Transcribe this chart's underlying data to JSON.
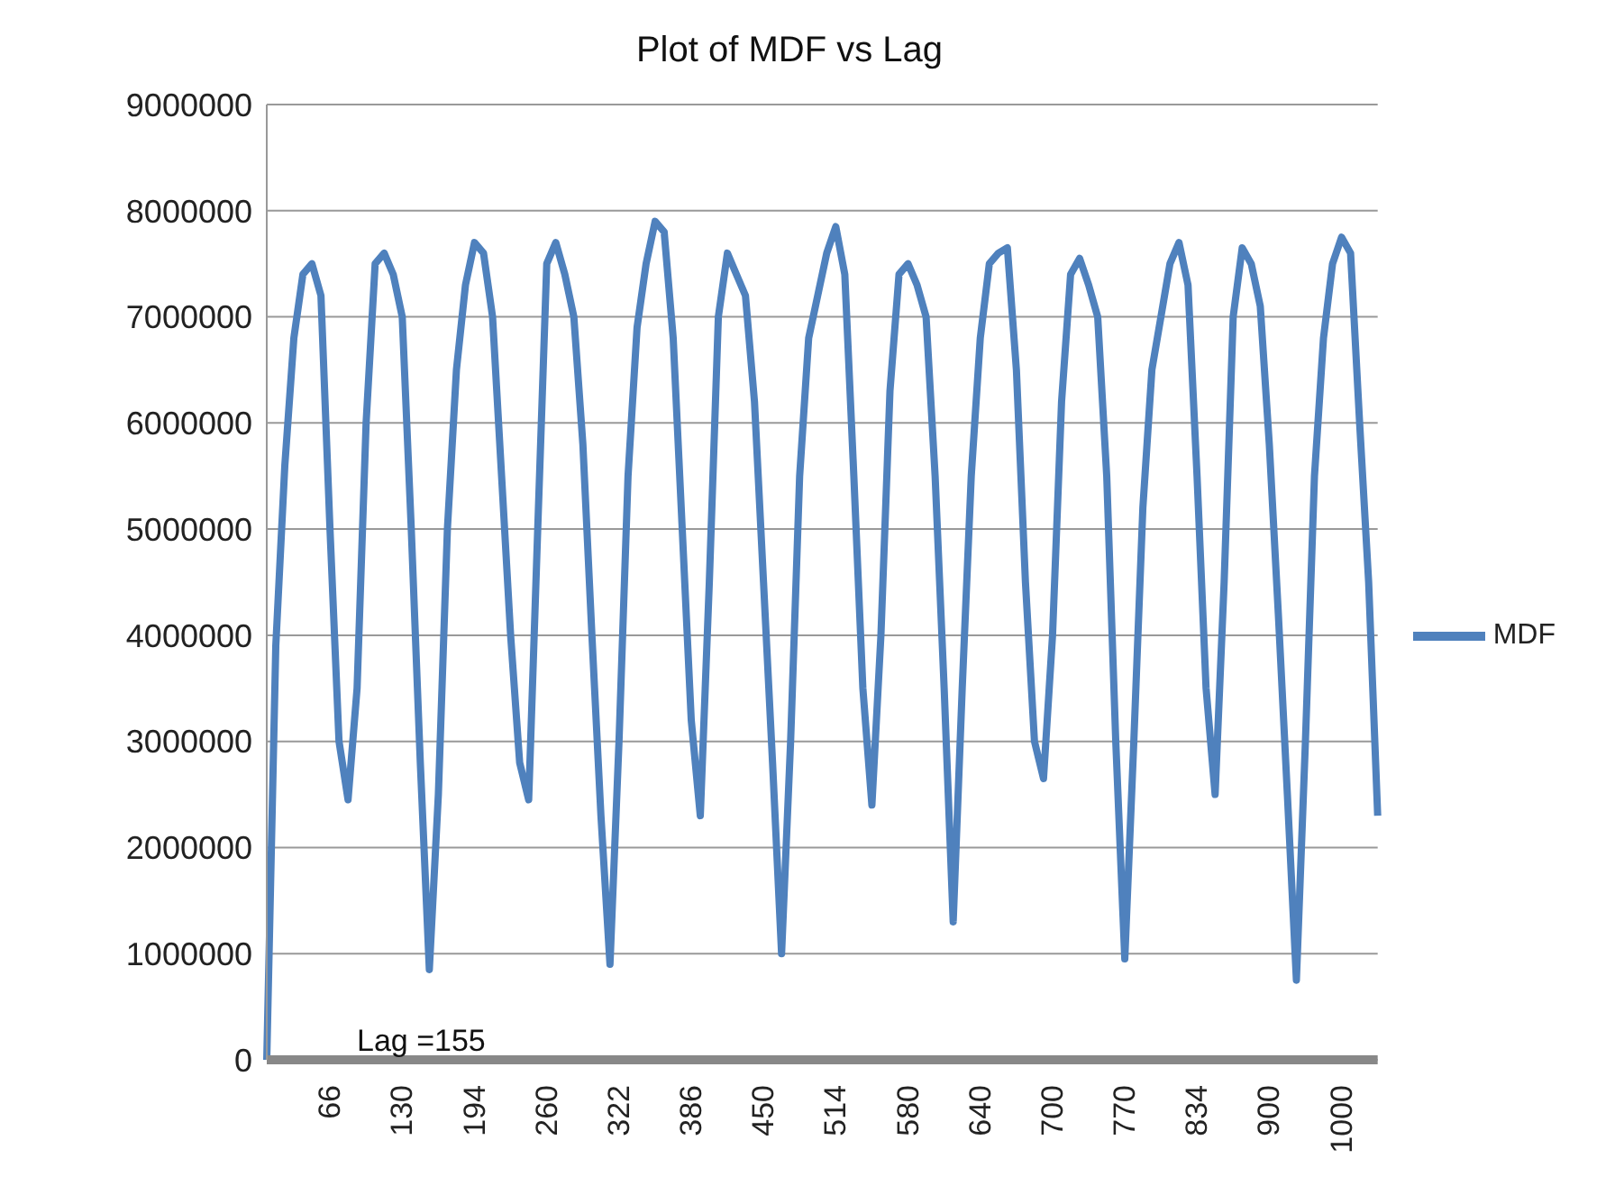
{
  "chart_data": {
    "type": "line",
    "title": "Plot of MDF vs Lag",
    "categories": [
      null,
      null,
      null,
      null,
      null,
      null,
      null,
      "66",
      null,
      null,
      null,
      null,
      null,
      null,
      null,
      "130",
      null,
      null,
      null,
      null,
      null,
      null,
      null,
      "194",
      null,
      null,
      null,
      null,
      null,
      null,
      null,
      "260",
      null,
      null,
      null,
      null,
      null,
      null,
      null,
      "322",
      null,
      null,
      null,
      null,
      null,
      null,
      null,
      "386",
      null,
      null,
      null,
      null,
      null,
      null,
      null,
      "450",
      null,
      null,
      null,
      null,
      null,
      null,
      null,
      "514",
      null,
      null,
      null,
      null,
      null,
      null,
      null,
      "580",
      null,
      null,
      null,
      null,
      null,
      null,
      null,
      "640",
      null,
      null,
      null,
      null,
      null,
      null,
      null,
      "700",
      null,
      null,
      null,
      null,
      null,
      null,
      null,
      "770",
      null,
      null,
      null,
      null,
      null,
      null,
      null,
      "834",
      null,
      null,
      null,
      null,
      null,
      null,
      null,
      "900",
      null,
      null,
      null,
      null,
      null,
      null,
      null,
      "1000",
      null,
      null,
      null,
      null
    ],
    "series": [
      {
        "name": "MDF",
        "color": "#4f81bd",
        "values": [
          0,
          3900000,
          5600000,
          6800000,
          7400000,
          7500000,
          7200000,
          5000000,
          3000000,
          2450000,
          3500000,
          6000000,
          7500000,
          7600000,
          7400000,
          7000000,
          5000000,
          2800000,
          850000,
          2500000,
          5000000,
          6500000,
          7300000,
          7700000,
          7600000,
          7000000,
          5500000,
          4000000,
          2800000,
          2450000,
          5000000,
          7500000,
          7700000,
          7400000,
          7000000,
          5800000,
          4000000,
          2300000,
          900000,
          3000000,
          5500000,
          6900000,
          7500000,
          7900000,
          7800000,
          6800000,
          5000000,
          3200000,
          2300000,
          4500000,
          7000000,
          7600000,
          7400000,
          7200000,
          6200000,
          4500000,
          2800000,
          1000000,
          3000000,
          5500000,
          6800000,
          7200000,
          7600000,
          7850000,
          7400000,
          5500000,
          3500000,
          2400000,
          4000000,
          6300000,
          7400000,
          7500000,
          7300000,
          7000000,
          5500000,
          3500000,
          1300000,
          3500000,
          5500000,
          6800000,
          7500000,
          7600000,
          7650000,
          6500000,
          4500000,
          3000000,
          2650000,
          4000000,
          6200000,
          7400000,
          7550000,
          7300000,
          7000000,
          5500000,
          3000000,
          950000,
          3000000,
          5200000,
          6500000,
          7000000,
          7500000,
          7700000,
          7300000,
          5500000,
          3500000,
          2500000,
          4500000,
          7000000,
          7650000,
          7500000,
          7100000,
          5800000,
          4200000,
          2500000,
          750000,
          3000000,
          5500000,
          6800000,
          7500000,
          7750000,
          7600000,
          6000000,
          4500000,
          2300000
        ]
      }
    ],
    "ylim": [
      0,
      9000000
    ],
    "yticks": [
      0,
      1000000,
      2000000,
      3000000,
      4000000,
      5000000,
      6000000,
      7000000,
      8000000,
      9000000
    ],
    "grid": "y",
    "legend": "right",
    "marker": "none",
    "line_style": "solid",
    "annotations": [
      "Lag =155"
    ]
  }
}
